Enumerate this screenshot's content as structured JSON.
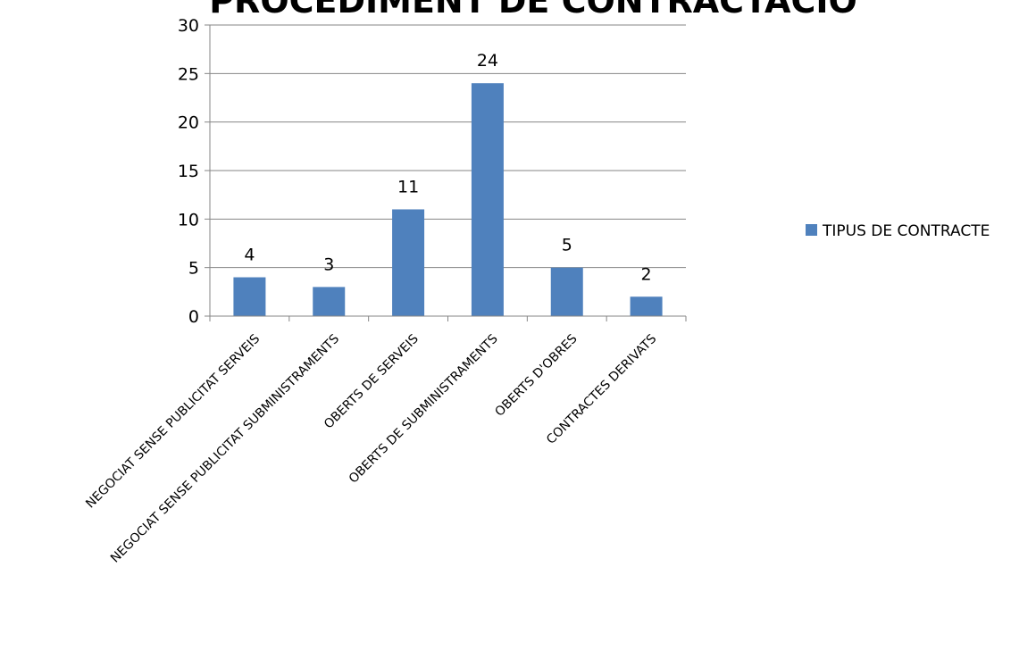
{
  "chart_data": {
    "type": "bar",
    "title": "PROCEDIMENT DE CONTRACTACIÓ",
    "xlabel": "",
    "ylabel": "",
    "ylim": [
      0,
      30
    ],
    "yticks": [
      0,
      5,
      10,
      15,
      20,
      25,
      30
    ],
    "grid": true,
    "legend_position": "right",
    "categories": [
      "NEGOCIAT SENSE PUBLICITAT SERVEIS",
      "NEGOCIAT SENSE PUBLICITAT SUBMINISTRAMENTS",
      "OBERTS DE SERVEIS",
      "OBERTS DE SUBMINISTRAMENTS",
      "OBERTS D'OBRES",
      "CONTRACTES DERIVATS"
    ],
    "series": [
      {
        "name": "TIPUS DE CONTRACTE",
        "color": "#4f81bd",
        "values": [
          4,
          3,
          11,
          24,
          5,
          2
        ]
      }
    ]
  }
}
